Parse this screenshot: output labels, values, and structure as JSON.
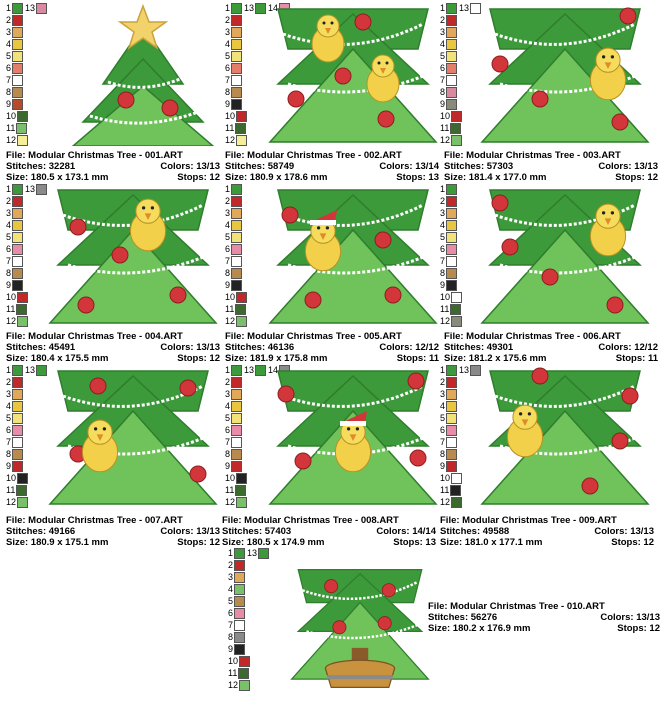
{
  "designs": [
    {
      "file": "File: Modular Christmas Tree - 001.ART",
      "stitches": "Stitches: 32281",
      "colors": "Colors: 13/13",
      "size": "Size: 180.5 x 173.1 mm",
      "stops": "Stops: 12",
      "variant": "star",
      "extra_swatch_numbers": [
        "13"
      ],
      "extra_swatches": [
        "#d98aa0"
      ],
      "palette_numbers": [
        "1",
        "2",
        "3",
        "4",
        "5",
        "6",
        "7",
        "8",
        "9",
        "10",
        "11",
        "12"
      ],
      "palette": [
        "#3d9a3a",
        "#c0282a",
        "#e2a85a",
        "#e9c640",
        "#f2e27a",
        "#e47e6a",
        "#ffffff",
        "#b98a4e",
        "#b84a2c",
        "#3c6a2e",
        "#7ac06a",
        "#f6ef9a"
      ]
    },
    {
      "file": "File: Modular Christmas Tree - 002.ART",
      "stitches": "Stitches: 58749",
      "colors": "Colors: 13/14",
      "size": "Size: 180.9 x 178.6 mm",
      "stops": "Stops: 13",
      "variant": "birds2",
      "extra_swatch_numbers": [
        "13",
        "14"
      ],
      "extra_swatches": [
        "#3d9a3a",
        "#e98ca8"
      ],
      "palette_numbers": [
        "1",
        "2",
        "3",
        "4",
        "5",
        "6",
        "7",
        "8",
        "9",
        "10",
        "11",
        "12"
      ],
      "palette": [
        "#3d9a3a",
        "#c0282a",
        "#e2a85a",
        "#e9c640",
        "#f2e27a",
        "#e47e6a",
        "#ffffff",
        "#b98a4e",
        "#222222",
        "#c0282a",
        "#3c6a2e",
        "#f6ef9a"
      ]
    },
    {
      "file": "File: Modular Christmas Tree - 003.ART",
      "stitches": "Stitches: 57303",
      "colors": "Colors: 13/13",
      "size": "Size: 181.4 x 177.0 mm",
      "stops": "Stops: 12",
      "variant": "bird-right",
      "extra_swatch_numbers": [
        "13"
      ],
      "extra_swatches": [
        "#ffffff"
      ],
      "palette_numbers": [
        "1",
        "2",
        "3",
        "4",
        "5",
        "6",
        "7",
        "8",
        "9",
        "10",
        "11",
        "12"
      ],
      "palette": [
        "#3d9a3a",
        "#c0282a",
        "#e2a85a",
        "#e9c640",
        "#f2e27a",
        "#e47e6a",
        "#ffffff",
        "#d98aa0",
        "#8a8a7a",
        "#c0282a",
        "#3c6a2e",
        "#7ac06a"
      ]
    },
    {
      "file": "File: Modular Christmas Tree - 004.ART",
      "stitches": "Stitches: 45491",
      "colors": "Colors: 13/13",
      "size": "Size: 180.4 x 175.5 mm",
      "stops": "Stops: 12",
      "variant": "bird-top",
      "extra_swatch_numbers": [
        "13"
      ],
      "extra_swatches": [
        "#8a8a8a"
      ],
      "palette_numbers": [
        "1",
        "2",
        "3",
        "4",
        "5",
        "6",
        "7",
        "8",
        "9",
        "10",
        "11",
        "12"
      ],
      "palette": [
        "#3d9a3a",
        "#c0282a",
        "#e2a85a",
        "#e9c640",
        "#f2e27a",
        "#e98ca8",
        "#ffffff",
        "#b98a4e",
        "#222222",
        "#c0282a",
        "#3c6a2e",
        "#7ac06a"
      ]
    },
    {
      "file": "File: Modular Christmas Tree - 005.ART",
      "stitches": "Stitches: 46136",
      "colors": "Colors: 12/12",
      "size": "Size: 181.9 x 175.8 mm",
      "stops": "Stops: 11",
      "variant": "santa-left",
      "extra_swatch_numbers": [],
      "extra_swatches": [],
      "palette_numbers": [
        "1",
        "2",
        "3",
        "4",
        "5",
        "6",
        "7",
        "8",
        "9",
        "10",
        "11",
        "12"
      ],
      "palette": [
        "#3d9a3a",
        "#c0282a",
        "#e2a85a",
        "#e9c640",
        "#f2e27a",
        "#e98ca8",
        "#ffffff",
        "#b98a4e",
        "#222222",
        "#c0282a",
        "#3c6a2e",
        "#7ac06a"
      ]
    },
    {
      "file": "File: Modular Christmas Tree - 006.ART",
      "stitches": "Stitches: 49301",
      "colors": "Colors: 12/12",
      "size": "Size: 181.2 x 175.6 mm",
      "stops": "Stops: 11",
      "variant": "bird-side",
      "extra_swatch_numbers": [],
      "extra_swatches": [],
      "palette_numbers": [
        "1",
        "2",
        "3",
        "4",
        "5",
        "6",
        "7",
        "8",
        "9",
        "10",
        "11",
        "12"
      ],
      "palette": [
        "#3d9a3a",
        "#c0282a",
        "#e2a85a",
        "#e9c640",
        "#f2e27a",
        "#e98ca8",
        "#ffffff",
        "#b98a4e",
        "#222222",
        "#ffffff",
        "#3c6a2e",
        "#8a8a7a"
      ]
    },
    {
      "file": "File: Modular Christmas Tree - 007.ART",
      "stitches": "Stitches: 49166",
      "colors": "Colors: 13/13",
      "size": "Size: 180.9 x 175.1 mm",
      "stops": "Stops: 12",
      "variant": "bird-low",
      "extra_swatch_numbers": [
        "13"
      ],
      "extra_swatches": [
        "#3d9a3a"
      ],
      "palette_numbers": [
        "1",
        "2",
        "3",
        "4",
        "5",
        "6",
        "7",
        "8",
        "9",
        "10",
        "11",
        "12"
      ],
      "palette": [
        "#3d9a3a",
        "#c0282a",
        "#e2a85a",
        "#e9c640",
        "#f2e27a",
        "#e98ca8",
        "#ffffff",
        "#b98a4e",
        "#c0282a",
        "#222222",
        "#3c6a2e",
        "#7ac06a"
      ]
    },
    {
      "file": "File: Modular Christmas Tree - 008.ART",
      "stitches": "Stitches: 57403",
      "colors": "Colors: 14/14",
      "size": "Size: 180.5 x 174.9 mm",
      "stops": "Stops: 13",
      "variant": "santa-center",
      "extra_swatch_numbers": [
        "13",
        "14"
      ],
      "extra_swatches": [
        "#3d9a3a",
        "#8a8a8a"
      ],
      "palette_numbers": [
        "1",
        "2",
        "3",
        "4",
        "5",
        "6",
        "7",
        "8",
        "9",
        "10",
        "11",
        "12"
      ],
      "palette": [
        "#3d9a3a",
        "#c0282a",
        "#e2a85a",
        "#e9c640",
        "#f2e27a",
        "#e98ca8",
        "#ffffff",
        "#b98a4e",
        "#c0282a",
        "#222222",
        "#3c6a2e",
        "#7ac06a"
      ]
    },
    {
      "file": "File: Modular Christmas Tree - 009.ART",
      "stitches": "Stitches: 49588",
      "colors": "Colors: 13/13",
      "size": "Size: 181.0 x 177.1 mm",
      "stops": "Stops: 12",
      "variant": "bird-mid",
      "extra_swatch_numbers": [
        "13"
      ],
      "extra_swatches": [
        "#8a8a8a"
      ],
      "palette_numbers": [
        "1",
        "2",
        "3",
        "4",
        "5",
        "6",
        "7",
        "8",
        "9",
        "10",
        "11",
        "12"
      ],
      "palette": [
        "#3d9a3a",
        "#c0282a",
        "#e2a85a",
        "#e9c640",
        "#f2e27a",
        "#e98ca8",
        "#ffffff",
        "#b98a4e",
        "#c0282a",
        "#ffffff",
        "#222222",
        "#3c6a2e"
      ]
    },
    {
      "file": "File: Modular Christmas Tree - 010.ART",
      "stitches": "Stitches: 56276",
      "colors": "Colors: 13/13",
      "size": "Size: 180.2 x 176.9 mm",
      "stops": "Stops: 12",
      "variant": "basket",
      "extra_swatch_numbers": [
        "13"
      ],
      "extra_swatches": [
        "#3d9a3a"
      ],
      "palette_numbers": [
        "1",
        "2",
        "3",
        "4",
        "5",
        "6",
        "7",
        "8",
        "9",
        "10",
        "11",
        "12"
      ],
      "palette": [
        "#3d9a3a",
        "#c0282a",
        "#e2a85a",
        "#7ac06a",
        "#b98a4e",
        "#e98ca8",
        "#ffffff",
        "#8a8a8a",
        "#222222",
        "#c0282a",
        "#3c6a2e",
        "#7ac06a"
      ]
    }
  ]
}
